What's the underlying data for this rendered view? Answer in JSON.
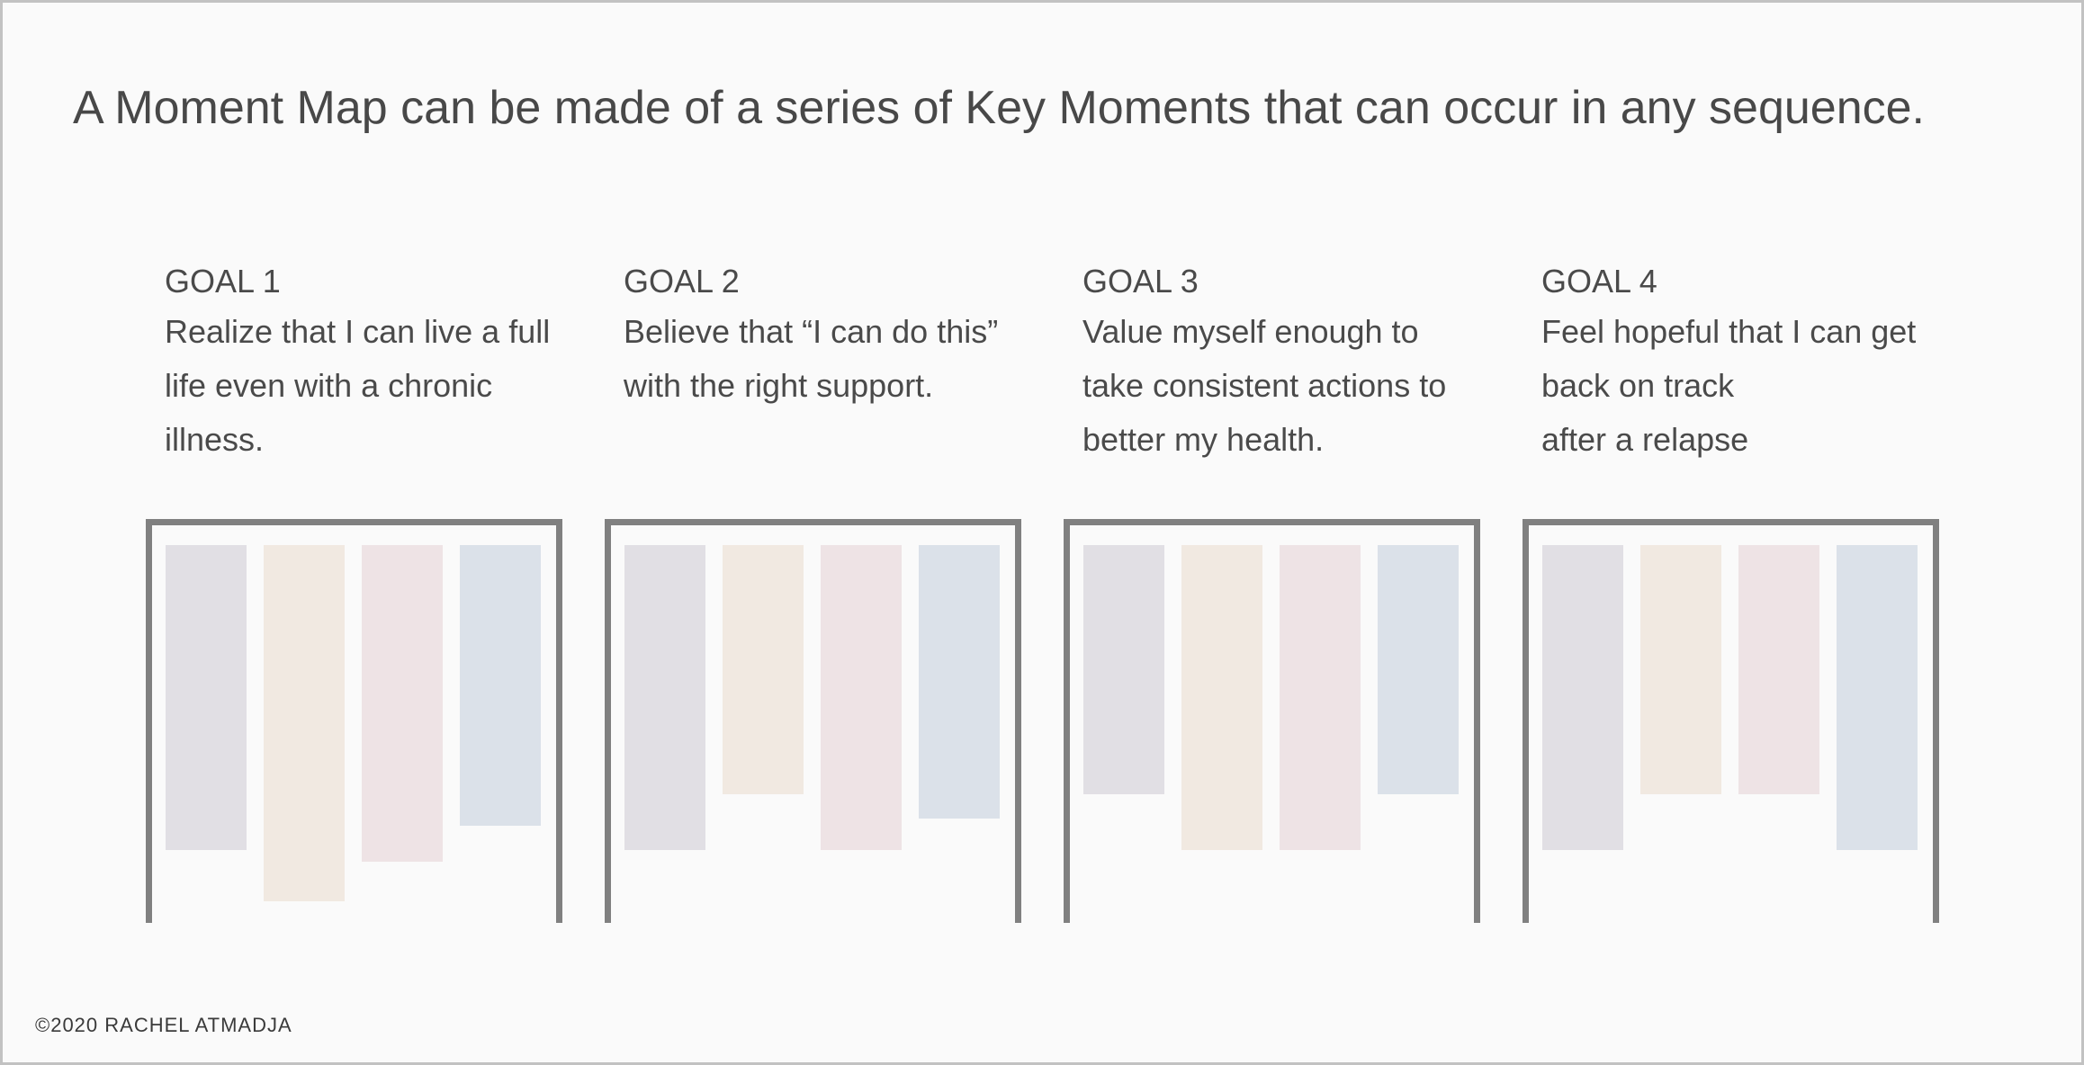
{
  "title": "A Moment Map can be made of a series of Key Moments that can occur in any sequence.",
  "footer": "©2020 RACHEL ATMADJA",
  "moment_colors": [
    "#e1dfe4",
    "#f1e9e1",
    "#eee3e5",
    "#dbe1e9"
  ],
  "goals": [
    {
      "label": "GOAL 1",
      "text": "Realize that I can live a full\nlife even with a chronic\nillness.",
      "moment_lengths": [
        0.77,
        0.9,
        0.8,
        0.71
      ]
    },
    {
      "label": "GOAL 2",
      "text": "Believe that “I can do this”\nwith the right support.",
      "moment_lengths": [
        0.77,
        0.63,
        0.77,
        0.69
      ]
    },
    {
      "label": "GOAL 3",
      "text": "Value myself enough to\ntake consistent actions to\nbetter my health.",
      "moment_lengths": [
        0.63,
        0.77,
        0.77,
        0.63
      ]
    },
    {
      "label": "GOAL 4",
      "text": "Feel hopeful that I can get\nback on track\nafter a relapse",
      "moment_lengths": [
        0.77,
        0.63,
        0.63,
        0.77
      ]
    }
  ]
}
